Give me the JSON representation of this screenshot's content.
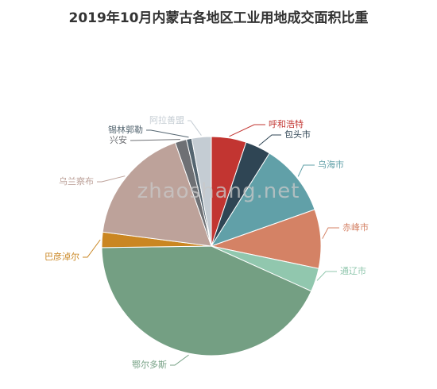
{
  "chart_data": {
    "type": "pie",
    "title": "2019年10月内蒙古各地区工业用地成交面积比重",
    "categories": [
      "呼和浩特",
      "包头市",
      "乌海市",
      "赤峰市",
      "通辽市",
      "鄂尔多斯",
      "巴彦淖尔",
      "乌兰察布",
      "兴安",
      "锡林郭勒",
      "阿拉善盟"
    ],
    "values": [
      5.2,
      3.8,
      10.8,
      8.8,
      3.5,
      43.5,
      2.3,
      17.8,
      1.7,
      0.8,
      2.9
    ],
    "colors": [
      "#c23531",
      "#2f4554",
      "#61a0a8",
      "#d48265",
      "#91c7ae",
      "#749f83",
      "#ca8622",
      "#bda29a",
      "#6e7074",
      "#546570",
      "#c4ccd3"
    ],
    "legend": "none"
  },
  "watermark": "zhaoshang.net"
}
